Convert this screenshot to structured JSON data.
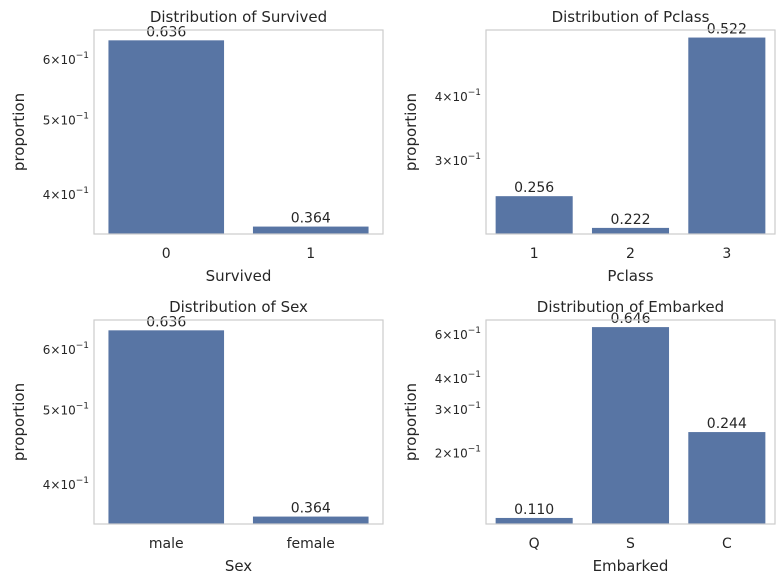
{
  "chart_data": [
    {
      "type": "bar",
      "title": "Distribution of Survived",
      "xlabel": "Survived",
      "ylabel": "proportion",
      "yscale": "log",
      "ylim": [
        0.356,
        0.656
      ],
      "categories": [
        "0",
        "1"
      ],
      "values": [
        0.636,
        0.364
      ],
      "data_labels": [
        "0.636",
        "0.364"
      ],
      "yticks": [
        {
          "value": 0.4,
          "mant": "4",
          "exp": "−1"
        },
        {
          "value": 0.5,
          "mant": "5",
          "exp": "−1"
        },
        {
          "value": 0.6,
          "mant": "6",
          "exp": "−1"
        }
      ],
      "grid": false,
      "color": "#5875a4"
    },
    {
      "type": "bar",
      "title": "Distribution of Pclass",
      "xlabel": "Pclass",
      "ylabel": "proportion",
      "yscale": "log",
      "ylim": [
        0.216,
        0.54
      ],
      "categories": [
        "1",
        "2",
        "3"
      ],
      "values": [
        0.256,
        0.222,
        0.522
      ],
      "data_labels": [
        "0.256",
        "0.222",
        "0.522"
      ],
      "yticks": [
        {
          "value": 0.3,
          "mant": "3",
          "exp": "−1"
        },
        {
          "value": 0.4,
          "mant": "4",
          "exp": "−1"
        }
      ],
      "grid": false,
      "color": "#5875a4"
    },
    {
      "type": "bar",
      "title": "Distribution of Sex",
      "xlabel": "Sex",
      "ylabel": "proportion",
      "yscale": "log",
      "ylim": [
        0.356,
        0.656
      ],
      "categories": [
        "male",
        "female"
      ],
      "values": [
        0.636,
        0.364
      ],
      "data_labels": [
        "0.636",
        "0.364"
      ],
      "yticks": [
        {
          "value": 0.4,
          "mant": "4",
          "exp": "−1"
        },
        {
          "value": 0.5,
          "mant": "5",
          "exp": "−1"
        },
        {
          "value": 0.6,
          "mant": "6",
          "exp": "−1"
        }
      ],
      "grid": false,
      "color": "#5875a4"
    },
    {
      "type": "bar",
      "title": "Distribution of Embarked",
      "xlabel": "Embarked",
      "ylabel": "proportion",
      "yscale": "log",
      "ylim": [
        0.104,
        0.69
      ],
      "categories": [
        "Q",
        "S",
        "C"
      ],
      "values": [
        0.11,
        0.646,
        0.244
      ],
      "data_labels": [
        "0.110",
        "0.646",
        "0.244"
      ],
      "yticks": [
        {
          "value": 0.2,
          "mant": "2",
          "exp": "−1"
        },
        {
          "value": 0.3,
          "mant": "3",
          "exp": "−1"
        },
        {
          "value": 0.4,
          "mant": "4",
          "exp": "−1"
        },
        {
          "value": 0.6,
          "mant": "6",
          "exp": "−1"
        }
      ],
      "grid": false,
      "color": "#5875a4"
    }
  ]
}
